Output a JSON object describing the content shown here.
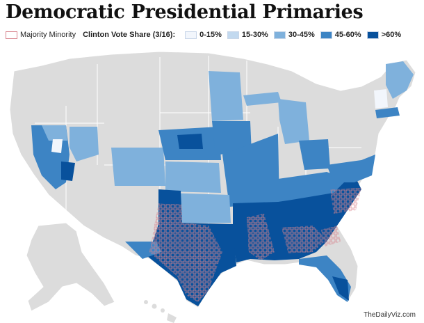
{
  "title": "Democratic Presidential Primaries",
  "legend": {
    "majority_minority_label": "Majority Minority",
    "scale_title": "Clinton Vote Share (3/16):",
    "bins": [
      {
        "label": "0-15%",
        "color": "#f2f6fc"
      },
      {
        "label": "15-30%",
        "color": "#c2d9ef"
      },
      {
        "label": "30-45%",
        "color": "#7fb1dc"
      },
      {
        "label": "45-60%",
        "color": "#3d84c4"
      },
      {
        "label": ">60%",
        "color": "#08519c"
      }
    ],
    "no_data_color": "#dcdcdc",
    "majority_minority_outline": "#d9848e"
  },
  "credit": "TheDailyViz.com"
}
